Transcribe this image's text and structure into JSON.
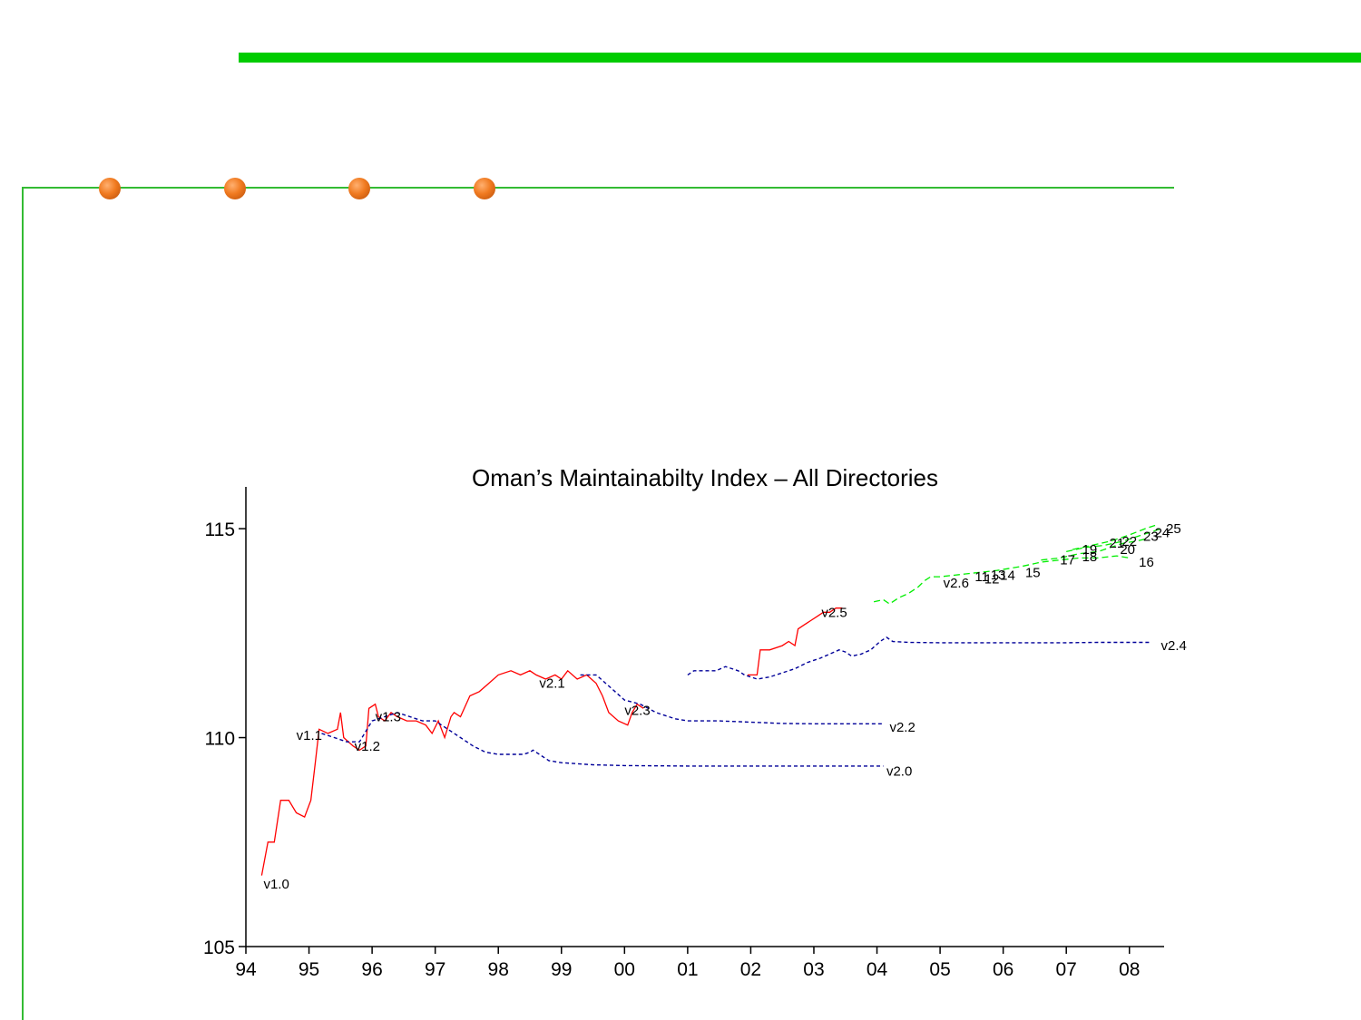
{
  "colors": {
    "accent_bar": "#00cc00",
    "rule": "#33bb33",
    "bullet": "#ee7722",
    "series_red": "#ff0000",
    "series_blue": "#000099",
    "series_green": "#00ee00"
  },
  "decor": {
    "bullets": 4
  },
  "chart_data": {
    "type": "line",
    "title": "Oman’s Maintainabilty Index – All Directories",
    "xlabel": "",
    "ylabel": "",
    "xlim": [
      1994.0,
      2008.55
    ],
    "ylim": [
      105,
      116
    ],
    "x_ticks": [
      {
        "v": 1994,
        "label": "94"
      },
      {
        "v": 1995,
        "label": "95"
      },
      {
        "v": 1996,
        "label": "96"
      },
      {
        "v": 1997,
        "label": "97"
      },
      {
        "v": 1998,
        "label": "98"
      },
      {
        "v": 1999,
        "label": "99"
      },
      {
        "v": 2000,
        "label": "00"
      },
      {
        "v": 2001,
        "label": "01"
      },
      {
        "v": 2002,
        "label": "02"
      },
      {
        "v": 2003,
        "label": "03"
      },
      {
        "v": 2004,
        "label": "04"
      },
      {
        "v": 2005,
        "label": "05"
      },
      {
        "v": 2006,
        "label": "06"
      },
      {
        "v": 2007,
        "label": "07"
      },
      {
        "v": 2008,
        "label": "08"
      }
    ],
    "y_ticks": [
      {
        "v": 105,
        "label": "105"
      },
      {
        "v": 110,
        "label": "110"
      },
      {
        "v": 115,
        "label": "115"
      }
    ],
    "grid": false,
    "series": [
      {
        "style": "red-solid",
        "points": [
          [
            1994.25,
            106.7
          ],
          [
            1994.35,
            107.5
          ],
          [
            1994.45,
            107.5
          ],
          [
            1994.55,
            108.5
          ],
          [
            1994.68,
            108.5
          ],
          [
            1994.8,
            108.2
          ],
          [
            1994.93,
            108.1
          ],
          [
            1995.03,
            108.5
          ],
          [
            1995.1,
            109.4
          ],
          [
            1995.16,
            110.2
          ],
          [
            1995.3,
            110.1
          ],
          [
            1995.45,
            110.2
          ],
          [
            1995.5,
            110.6
          ],
          [
            1995.55,
            110.0
          ],
          [
            1995.7,
            109.8
          ],
          [
            1995.8,
            109.7
          ],
          [
            1995.9,
            109.8
          ],
          [
            1995.95,
            110.7
          ],
          [
            1996.05,
            110.8
          ],
          [
            1996.1,
            110.5
          ],
          [
            1996.2,
            110.4
          ],
          [
            1996.3,
            110.6
          ],
          [
            1996.4,
            110.5
          ],
          [
            1996.55,
            110.4
          ],
          [
            1996.7,
            110.4
          ],
          [
            1996.85,
            110.3
          ],
          [
            1996.95,
            110.1
          ],
          [
            1997.05,
            110.4
          ],
          [
            1997.15,
            110.0
          ],
          [
            1997.25,
            110.5
          ],
          [
            1997.3,
            110.6
          ],
          [
            1997.4,
            110.5
          ],
          [
            1997.55,
            111.0
          ],
          [
            1997.7,
            111.1
          ],
          [
            1997.85,
            111.3
          ],
          [
            1998.0,
            111.5
          ],
          [
            1998.2,
            111.6
          ],
          [
            1998.35,
            111.5
          ],
          [
            1998.5,
            111.6
          ],
          [
            1998.6,
            111.5
          ],
          [
            1998.75,
            111.4
          ],
          [
            1998.9,
            111.5
          ],
          [
            1999.0,
            111.4
          ],
          [
            1999.1,
            111.6
          ],
          [
            1999.25,
            111.4
          ],
          [
            1999.4,
            111.5
          ],
          [
            1999.55,
            111.3
          ],
          [
            1999.65,
            111.0
          ],
          [
            1999.75,
            110.6
          ],
          [
            1999.9,
            110.4
          ],
          [
            2000.05,
            110.3
          ],
          [
            2000.12,
            110.6
          ],
          [
            2000.2,
            110.8
          ],
          [
            2000.3,
            110.7
          ]
        ]
      },
      {
        "style": "red-solid",
        "points": [
          [
            2001.95,
            111.5
          ],
          [
            2002.1,
            111.5
          ],
          [
            2002.15,
            112.1
          ],
          [
            2002.3,
            112.1
          ],
          [
            2002.5,
            112.2
          ],
          [
            2002.6,
            112.3
          ],
          [
            2002.7,
            112.2
          ],
          [
            2002.75,
            112.6
          ],
          [
            2002.85,
            112.7
          ],
          [
            2002.95,
            112.8
          ],
          [
            2003.05,
            112.9
          ],
          [
            2003.15,
            113.0
          ],
          [
            2003.25,
            113.0
          ],
          [
            2003.35,
            113.1
          ],
          [
            2003.45,
            113.1
          ]
        ]
      },
      {
        "style": "blue-dashed",
        "points": [
          [
            1995.2,
            110.1
          ],
          [
            1995.4,
            110.0
          ],
          [
            1995.6,
            109.9
          ],
          [
            1995.8,
            109.9
          ],
          [
            1996.0,
            110.4
          ],
          [
            1996.2,
            110.5
          ],
          [
            1996.4,
            110.6
          ],
          [
            1996.6,
            110.5
          ],
          [
            1996.8,
            110.4
          ],
          [
            1997.0,
            110.4
          ],
          [
            1997.2,
            110.2
          ],
          [
            1997.4,
            110.0
          ],
          [
            1997.6,
            109.8
          ],
          [
            1997.8,
            109.65
          ],
          [
            1998.0,
            109.6
          ],
          [
            1998.2,
            109.6
          ],
          [
            1998.4,
            109.6
          ],
          [
            1998.5,
            109.65
          ],
          [
            1998.55,
            109.7
          ],
          [
            1998.65,
            109.6
          ],
          [
            1998.8,
            109.45
          ],
          [
            1999.0,
            109.4
          ],
          [
            1999.5,
            109.35
          ],
          [
            2000.0,
            109.33
          ],
          [
            2001.0,
            109.32
          ],
          [
            2002.0,
            109.32
          ],
          [
            2003.0,
            109.32
          ],
          [
            2004.1,
            109.32
          ]
        ]
      },
      {
        "style": "blue-dashed",
        "points": [
          [
            1999.3,
            111.5
          ],
          [
            1999.4,
            111.5
          ],
          [
            1999.55,
            111.5
          ],
          [
            1999.7,
            111.3
          ],
          [
            1999.85,
            111.1
          ],
          [
            2000.0,
            110.9
          ],
          [
            2000.25,
            110.8
          ],
          [
            2000.5,
            110.6
          ],
          [
            2000.8,
            110.45
          ],
          [
            2001.0,
            110.4
          ],
          [
            2001.5,
            110.4
          ],
          [
            2002.0,
            110.37
          ],
          [
            2002.5,
            110.34
          ],
          [
            2003.0,
            110.33
          ],
          [
            2004.1,
            110.33
          ]
        ]
      },
      {
        "style": "blue-dashed",
        "points": [
          [
            2001.0,
            111.5
          ],
          [
            2001.1,
            111.6
          ],
          [
            2001.3,
            111.6
          ],
          [
            2001.45,
            111.6
          ],
          [
            2001.6,
            111.7
          ],
          [
            2001.8,
            111.6
          ],
          [
            2001.9,
            111.5
          ],
          [
            2002.1,
            111.4
          ],
          [
            2002.3,
            111.45
          ],
          [
            2002.5,
            111.55
          ],
          [
            2002.7,
            111.65
          ],
          [
            2002.9,
            111.8
          ],
          [
            2003.1,
            111.9
          ],
          [
            2003.25,
            112.0
          ],
          [
            2003.4,
            112.1
          ],
          [
            2003.5,
            112.05
          ],
          [
            2003.6,
            111.95
          ],
          [
            2003.75,
            112.0
          ],
          [
            2003.9,
            112.1
          ],
          [
            2004.05,
            112.3
          ],
          [
            2004.15,
            112.4
          ],
          [
            2004.25,
            112.3
          ],
          [
            2004.5,
            112.28
          ],
          [
            2005.0,
            112.27
          ],
          [
            2006.0,
            112.27
          ],
          [
            2007.0,
            112.27
          ],
          [
            2007.5,
            112.28
          ],
          [
            2008.0,
            112.28
          ],
          [
            2008.35,
            112.28
          ]
        ]
      },
      {
        "style": "green-dashed",
        "points": [
          [
            2003.95,
            113.25
          ],
          [
            2004.1,
            113.3
          ],
          [
            2004.2,
            113.2
          ],
          [
            2004.35,
            113.35
          ],
          [
            2004.5,
            113.45
          ],
          [
            2004.65,
            113.6
          ],
          [
            2004.75,
            113.75
          ],
          [
            2004.85,
            113.85
          ],
          [
            2005.0,
            113.85
          ],
          [
            2005.3,
            113.9
          ],
          [
            2005.6,
            113.95
          ],
          [
            2005.9,
            114.0
          ],
          [
            2006.1,
            114.05
          ],
          [
            2006.3,
            114.1
          ],
          [
            2006.6,
            114.2
          ],
          [
            2006.9,
            114.25
          ],
          [
            2007.2,
            114.3
          ],
          [
            2007.5,
            114.3
          ],
          [
            2007.8,
            114.35
          ],
          [
            2008.0,
            114.3
          ]
        ]
      },
      {
        "style": "green-dashed",
        "points": [
          [
            2007.0,
            114.45
          ],
          [
            2007.3,
            114.55
          ],
          [
            2007.6,
            114.6
          ],
          [
            2007.9,
            114.7
          ],
          [
            2008.1,
            114.8
          ],
          [
            2008.3,
            114.9
          ],
          [
            2008.5,
            115.0
          ]
        ]
      },
      {
        "style": "green-dashed",
        "points": [
          [
            2007.1,
            114.5
          ],
          [
            2007.4,
            114.6
          ],
          [
            2007.7,
            114.7
          ],
          [
            2008.0,
            114.85
          ],
          [
            2008.25,
            115.0
          ],
          [
            2008.45,
            115.1
          ]
        ]
      },
      {
        "style": "green-dashed",
        "points": [
          [
            2006.6,
            114.25
          ],
          [
            2006.9,
            114.3
          ],
          [
            2007.2,
            114.4
          ],
          [
            2007.5,
            114.45
          ],
          [
            2007.7,
            114.55
          ],
          [
            2007.9,
            114.65
          ],
          [
            2008.1,
            114.7
          ],
          [
            2008.25,
            114.75
          ]
        ]
      }
    ],
    "annotations": [
      {
        "text": "v1.0",
        "x": 1994.28,
        "y": 106.5
      },
      {
        "text": "v1.1",
        "x": 1994.8,
        "y": 110.05
      },
      {
        "text": "v1.2",
        "x": 1995.72,
        "y": 109.8
      },
      {
        "text": "v1.3",
        "x": 1996.05,
        "y": 110.5
      },
      {
        "text": "v2.1",
        "x": 1998.65,
        "y": 111.3
      },
      {
        "text": "v2.3",
        "x": 2000.0,
        "y": 110.65
      },
      {
        "text": "v2.5",
        "x": 2003.12,
        "y": 113.0
      },
      {
        "text": "v2.4",
        "x": 2008.5,
        "y": 112.2
      },
      {
        "text": "v2.2",
        "x": 2004.2,
        "y": 110.25
      },
      {
        "text": "v2.0",
        "x": 2004.15,
        "y": 109.2
      },
      {
        "text": "v2.6",
        "x": 2005.05,
        "y": 113.7
      },
      {
        "text": "11",
        "x": 2005.55,
        "y": 113.85
      },
      {
        "text": "12",
        "x": 2005.7,
        "y": 113.8
      },
      {
        "text": "13",
        "x": 2005.8,
        "y": 113.9
      },
      {
        "text": "14",
        "x": 2005.95,
        "y": 113.88
      },
      {
        "text": "15",
        "x": 2006.35,
        "y": 113.95
      },
      {
        "text": "16",
        "x": 2008.15,
        "y": 114.2
      },
      {
        "text": "17",
        "x": 2006.9,
        "y": 114.25
      },
      {
        "text": "18",
        "x": 2007.25,
        "y": 114.33
      },
      {
        "text": "19",
        "x": 2007.25,
        "y": 114.5
      },
      {
        "text": "20",
        "x": 2007.85,
        "y": 114.5
      },
      {
        "text": "21",
        "x": 2007.68,
        "y": 114.65
      },
      {
        "text": "22",
        "x": 2007.88,
        "y": 114.7
      },
      {
        "text": "23",
        "x": 2008.22,
        "y": 114.82
      },
      {
        "text": "24",
        "x": 2008.4,
        "y": 114.9
      },
      {
        "text": "25",
        "x": 2008.58,
        "y": 115.0
      }
    ]
  }
}
